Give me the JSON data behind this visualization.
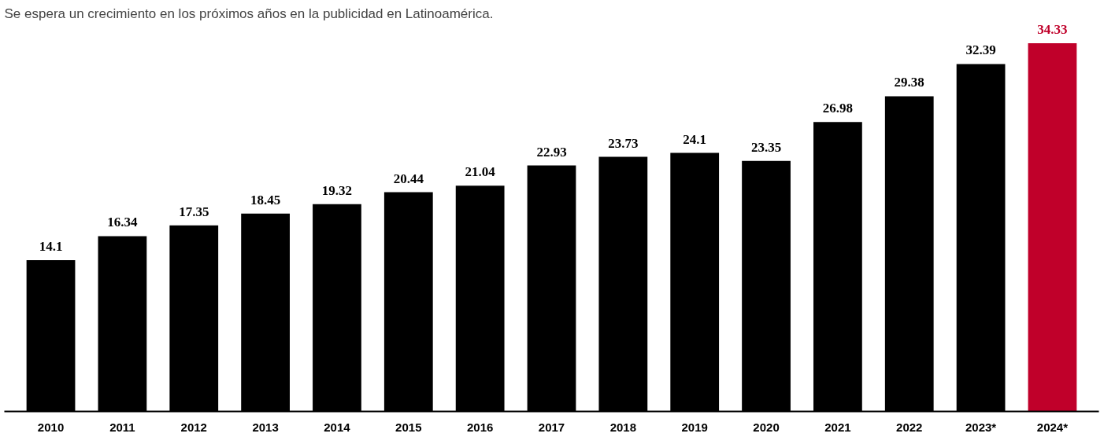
{
  "chart_data": {
    "type": "bar",
    "title": "Se espera un crecimiento en los próximos años en la publicidad en Latinoamérica.",
    "categories": [
      "2010",
      "2011",
      "2012",
      "2013",
      "2014",
      "2015",
      "2016",
      "2017",
      "2018",
      "2019",
      "2020",
      "2021",
      "2022",
      "2023*",
      "2024*"
    ],
    "values": [
      14.1,
      16.34,
      17.35,
      18.45,
      19.32,
      20.44,
      21.04,
      22.93,
      23.73,
      24.1,
      23.35,
      26.98,
      29.38,
      32.39,
      34.33
    ],
    "colors": [
      "#000000",
      "#000000",
      "#000000",
      "#000000",
      "#000000",
      "#000000",
      "#000000",
      "#000000",
      "#000000",
      "#000000",
      "#000000",
      "#000000",
      "#000000",
      "#000000",
      "#c0002a"
    ],
    "data_labels": true,
    "tick_labels": "x"
  }
}
